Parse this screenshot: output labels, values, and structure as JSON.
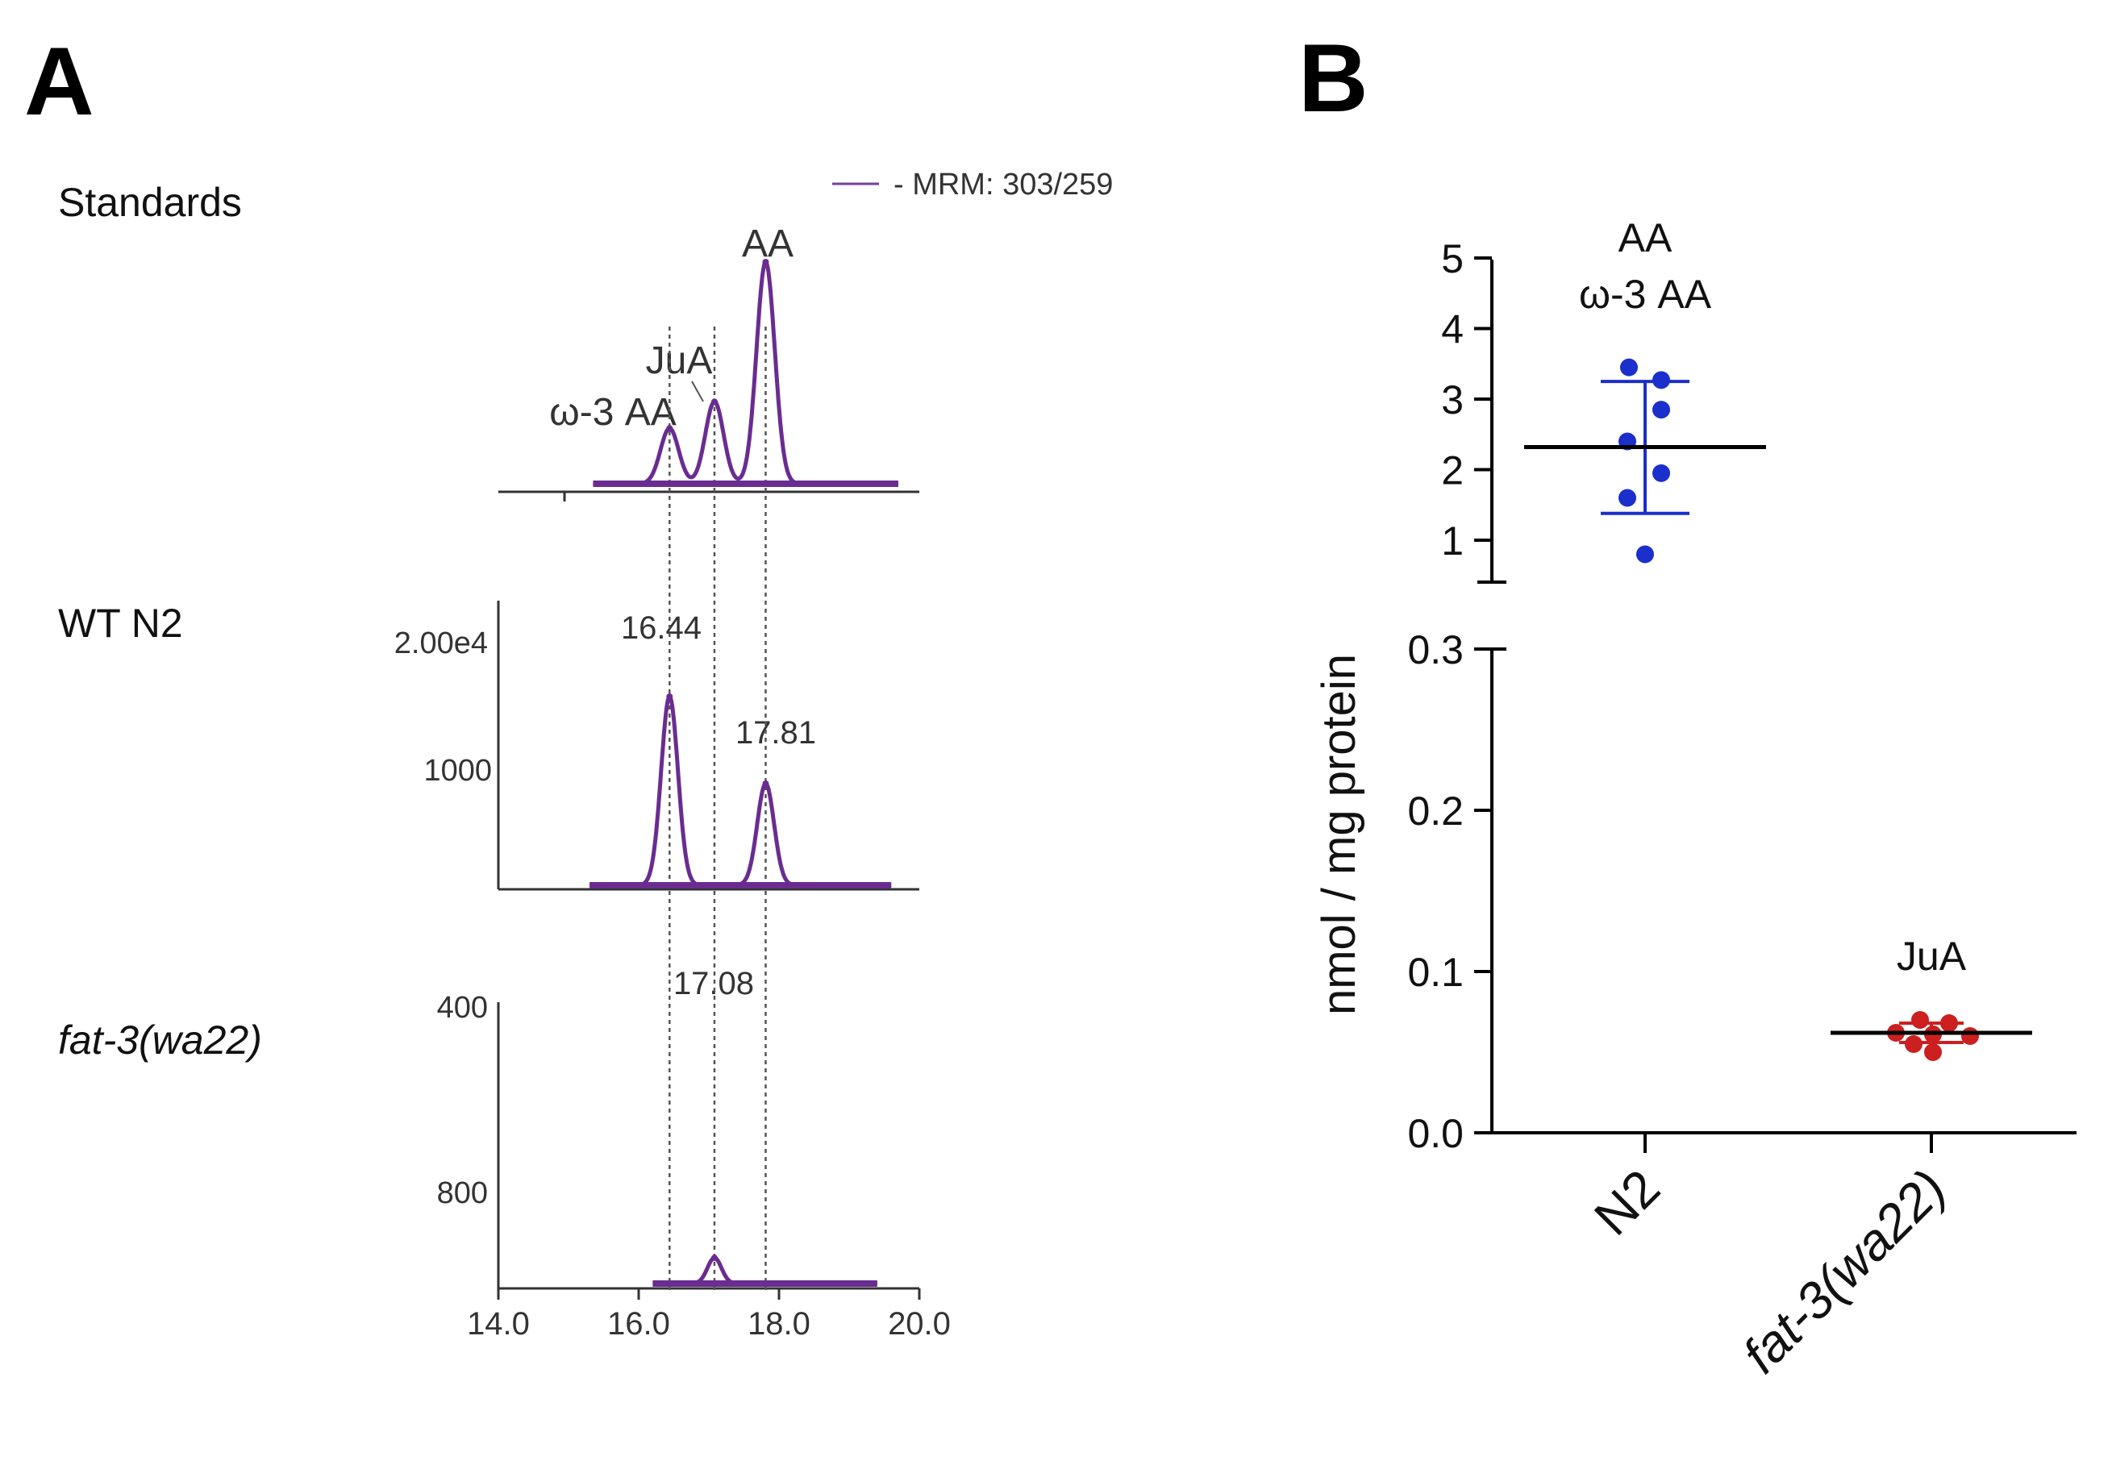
{
  "chart_data": [
    {
      "panel": "A",
      "type": "line",
      "legend": "- MRM: 303/259",
      "x_ticks": [
        "14.0",
        "16.0",
        "18.0",
        "20.0"
      ],
      "xlim": [
        14.0,
        20.0
      ],
      "reference_lines_x": [
        16.44,
        17.08,
        17.81
      ],
      "traces": [
        {
          "label": "Standards",
          "peaks": [
            {
              "name": "ω-3 AA",
              "x": 16.44,
              "height": 0.25
            },
            {
              "name": "JuA",
              "x": 17.08,
              "height": 0.37
            },
            {
              "name": "AA",
              "x": 17.81,
              "height": 1.0
            }
          ]
        },
        {
          "label": "WT N2",
          "y_ticks": [
            "2.00e4",
            "1000"
          ],
          "peaks": [
            {
              "name": "16.44",
              "x": 16.44,
              "height": 0.78
            },
            {
              "name": "17.81",
              "x": 17.81,
              "height": 0.42
            }
          ]
        },
        {
          "label": "fat-3(wa22)",
          "y_ticks": [
            "400",
            "800"
          ],
          "peaks": [
            {
              "name": "17.08",
              "x": 17.08,
              "height": 0.11
            }
          ]
        }
      ]
    },
    {
      "panel": "B",
      "type": "scatter",
      "ylabel": "nmol / mg protein",
      "categories": [
        "N2",
        "fat-3(wa22)"
      ],
      "y_ticks_upper": [
        "1",
        "2",
        "3",
        "4",
        "5"
      ],
      "y_ticks_lower": [
        "0.0",
        "0.1",
        "0.2",
        "0.3"
      ],
      "ylim_lower": [
        0.0,
        0.3
      ],
      "ylim_upper": [
        0.4,
        5.0
      ],
      "series": [
        {
          "category": "N2",
          "labels": [
            "AA",
            "ω-3 AA"
          ],
          "color": "#1a2fcc",
          "points": [
            3.45,
            3.27,
            2.85,
            2.4,
            1.95,
            1.6,
            0.8
          ],
          "mean": 2.32,
          "sd": [
            1.38,
            3.25
          ]
        },
        {
          "category": "fat-3(wa22)",
          "labels": [
            "JuA"
          ],
          "color": "#cc1f1f",
          "points": [
            0.07,
            0.068,
            0.062,
            0.06,
            0.061,
            0.055,
            0.05
          ],
          "mean": 0.062,
          "sd": [
            0.056,
            0.068
          ]
        }
      ]
    }
  ],
  "panels": {
    "a": "A",
    "b": "B"
  }
}
